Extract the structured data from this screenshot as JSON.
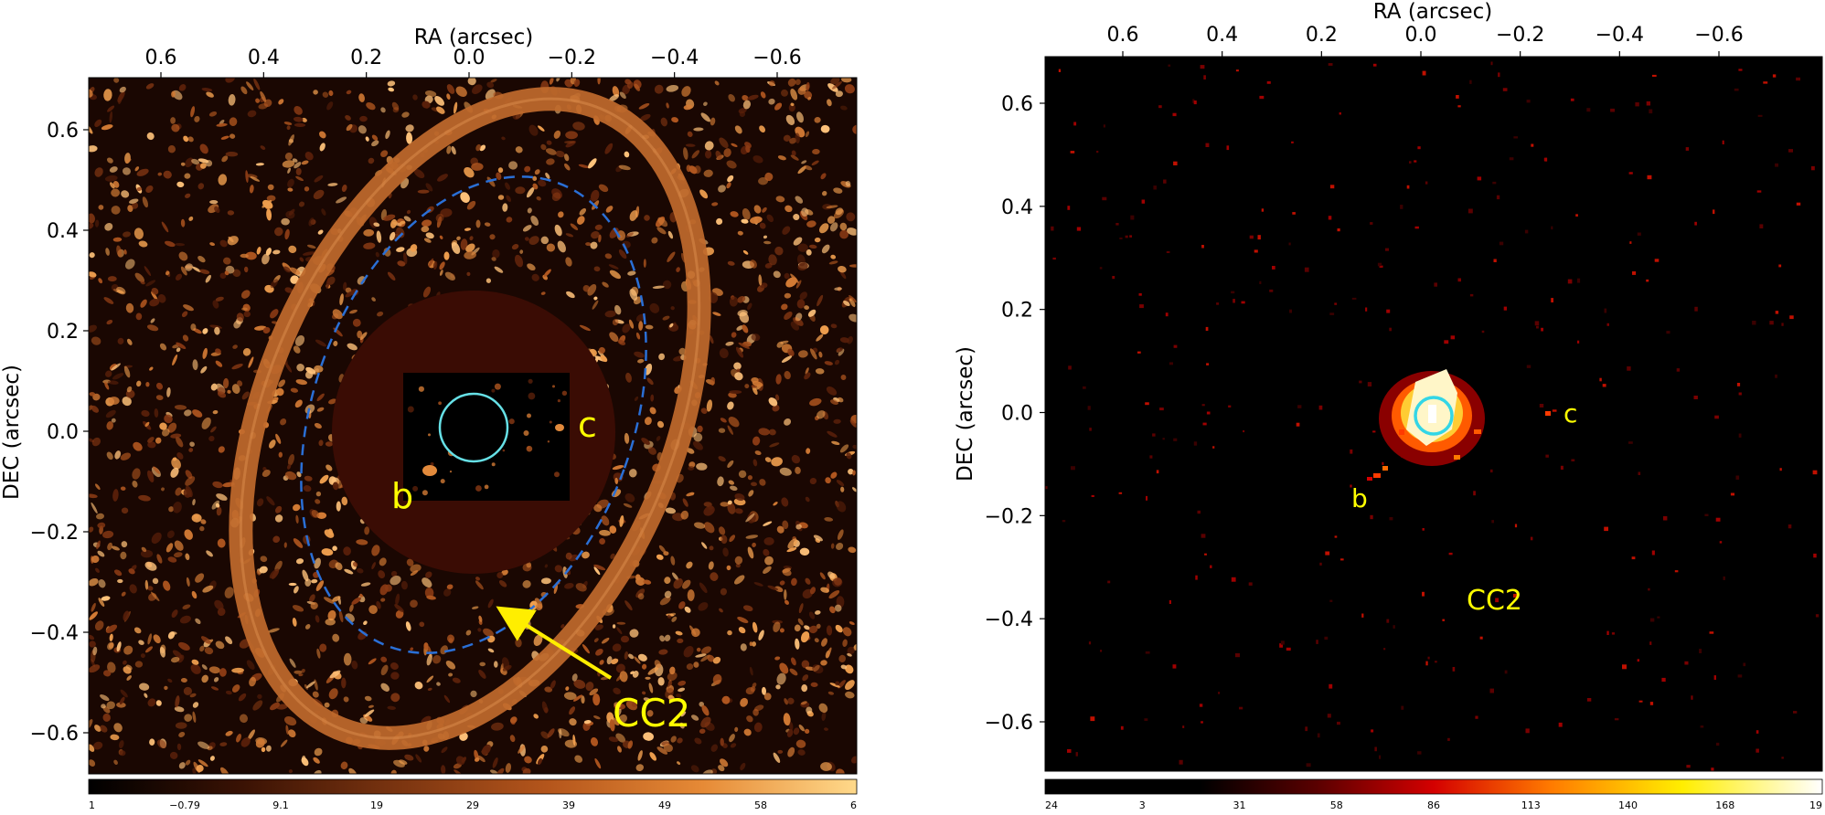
{
  "panels": [
    {
      "xlabel": "RA (arcsec)",
      "ylabel": "DEC (arcsec)",
      "x_ticks": [
        "0.6",
        "0.4",
        "0.2",
        "0.0",
        "−0.2",
        "−0.4",
        "−0.6"
      ],
      "y_ticks": [
        "0.6",
        "0.4",
        "0.2",
        "0.0",
        "−0.2",
        "−0.4",
        "−0.6"
      ],
      "colorbar_labels": [
        "1",
        "−0.79",
        "9.1",
        "19",
        "29",
        "39",
        "49",
        "58",
        "6"
      ],
      "colorbar_colors": [
        "#000000",
        "#3a1204",
        "#7a3410",
        "#b5561c",
        "#e68a36",
        "#ffd98a"
      ],
      "annotations": {
        "b": "b",
        "c": "c",
        "cc2": "CC2"
      },
      "image_colors": {
        "background": "#1a0702",
        "speckle": "#c96a2a",
        "masked_disk": "#3a0c04",
        "ring": "#c06a2c",
        "dashed_ellipse": "#2a6fd6",
        "circle": "#66e0e6",
        "arrow": "#ffee00"
      }
    },
    {
      "xlabel": "RA (arcsec)",
      "ylabel": "DEC (arcsec)",
      "x_ticks": [
        "0.6",
        "0.4",
        "0.2",
        "0.0",
        "−0.2",
        "−0.4",
        "−0.6"
      ],
      "y_ticks": [
        "0.6",
        "0.4",
        "0.2",
        "0.0",
        "−0.2",
        "−0.4",
        "−0.6"
      ],
      "colorbar_labels": [
        "24",
        "3",
        "31",
        "58",
        "86",
        "113",
        "140",
        "168",
        "19"
      ],
      "colorbar_colors": [
        "#000000",
        "#000000",
        "#5a0000",
        "#d40000",
        "#ff7a00",
        "#ffee00",
        "#ffffff"
      ],
      "annotations": {
        "b": "b",
        "c": "c",
        "cc2": "CC2"
      },
      "image_colors": {
        "background": "#000000",
        "speckle": "#8a0000",
        "core": "#ffcc33",
        "circle": "#33d6e6"
      }
    }
  ]
}
